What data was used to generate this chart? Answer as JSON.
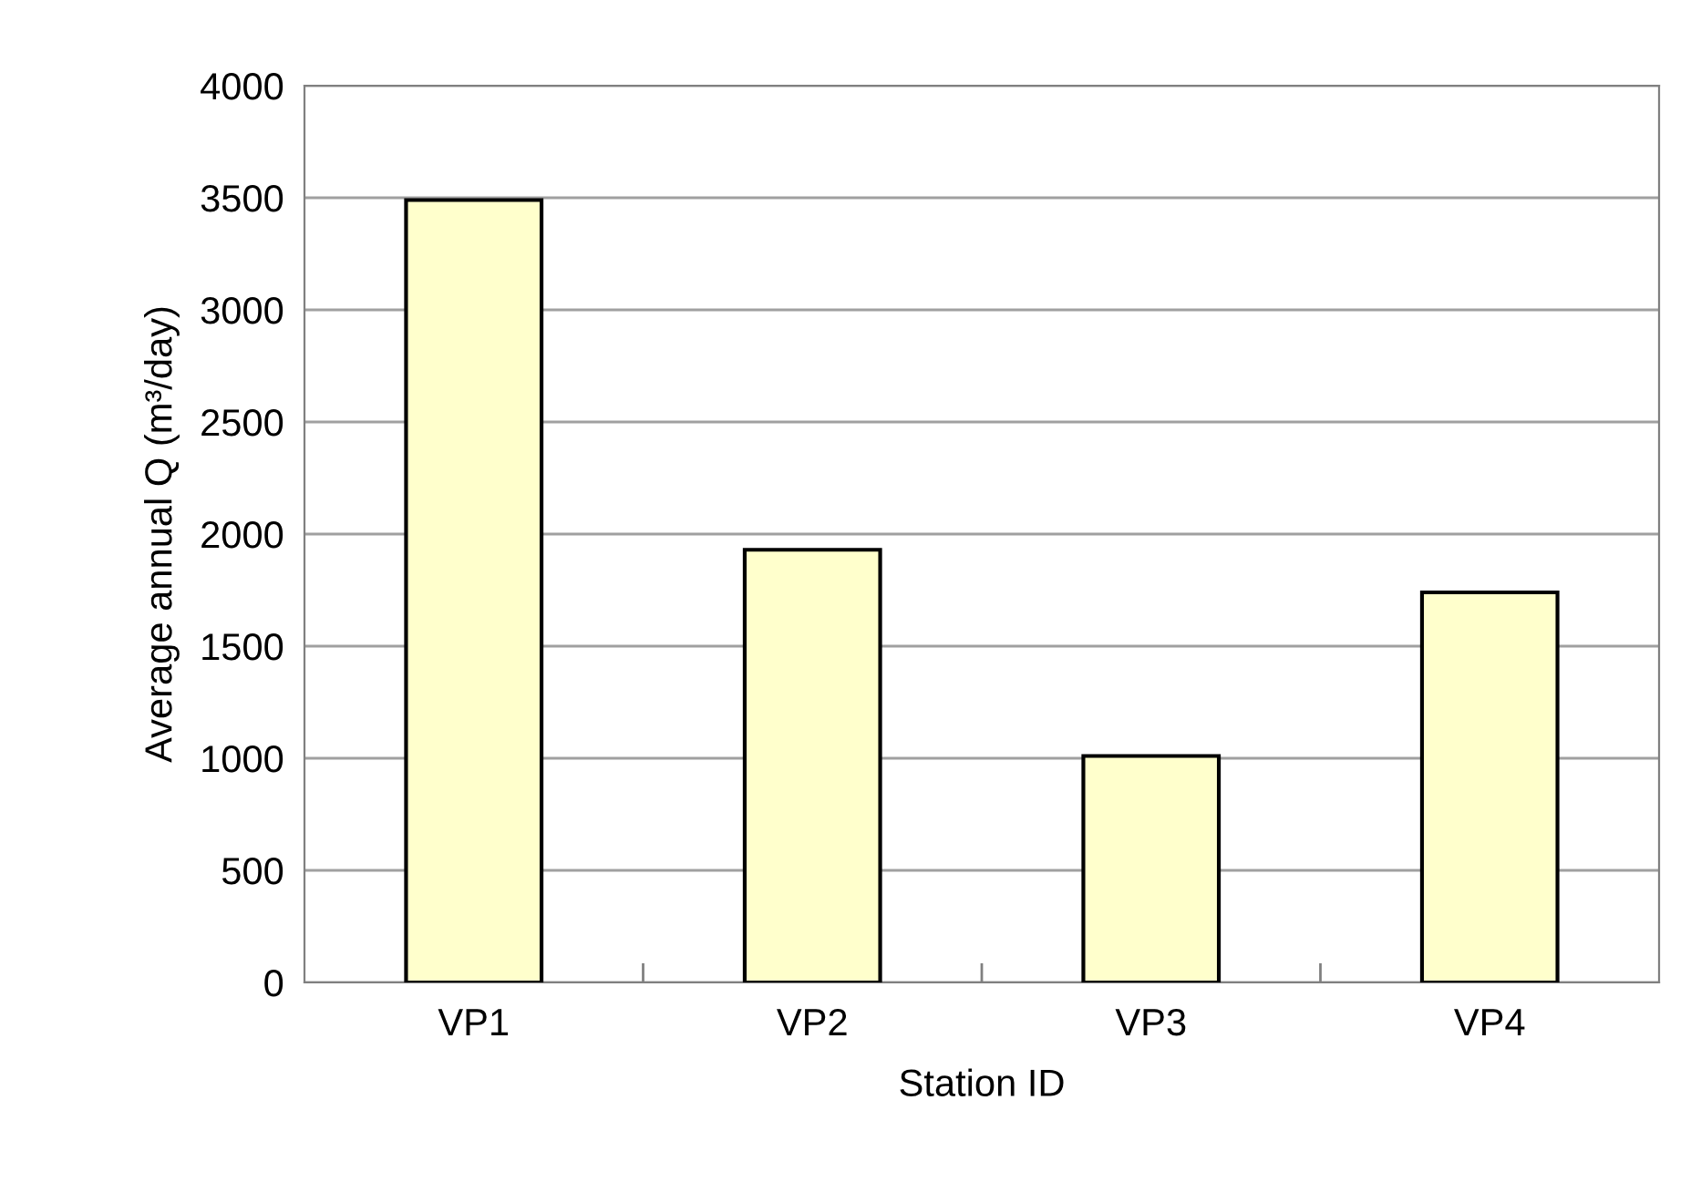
{
  "chart_data": {
    "type": "bar",
    "xlabel": "Station ID",
    "ylabel": "Average annual Q (m³/day)",
    "categories": [
      "VP1",
      "VP2",
      "VP3",
      "VP4"
    ],
    "values": [
      3490,
      1930,
      1010,
      1740
    ],
    "color": "#ffffcc",
    "ylim": [
      0,
      4000
    ],
    "yticks": [
      0,
      500,
      1000,
      1500,
      2000,
      2500,
      3000,
      3500,
      4000
    ],
    "grid": "y",
    "legend": false
  }
}
